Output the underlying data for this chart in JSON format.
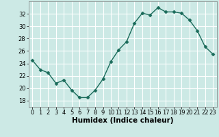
{
  "xlabel": "Humidex (Indice chaleur)",
  "x": [
    0,
    1,
    2,
    3,
    4,
    5,
    6,
    7,
    8,
    9,
    10,
    11,
    12,
    13,
    14,
    15,
    16,
    17,
    18,
    19,
    20,
    21,
    22,
    23
  ],
  "y": [
    24.5,
    23.0,
    22.5,
    20.8,
    21.3,
    19.7,
    18.5,
    18.5,
    19.7,
    21.5,
    24.3,
    26.2,
    27.5,
    30.5,
    32.1,
    31.8,
    33.0,
    32.3,
    32.3,
    32.1,
    31.0,
    29.3,
    26.7,
    25.5
  ],
  "line_color": "#1a6b5a",
  "marker": "D",
  "marker_size": 2.5,
  "background_color": "#cce9e5",
  "grid_color": "#ffffff",
  "ylim": [
    17,
    34
  ],
  "xlim": [
    -0.5,
    23.5
  ],
  "yticks": [
    18,
    20,
    22,
    24,
    26,
    28,
    30,
    32
  ],
  "xticks": [
    0,
    1,
    2,
    3,
    4,
    5,
    6,
    7,
    8,
    9,
    10,
    11,
    12,
    13,
    14,
    15,
    16,
    17,
    18,
    19,
    20,
    21,
    22,
    23
  ],
  "tick_fontsize": 6,
  "xlabel_fontsize": 7.5,
  "linewidth": 1.0
}
